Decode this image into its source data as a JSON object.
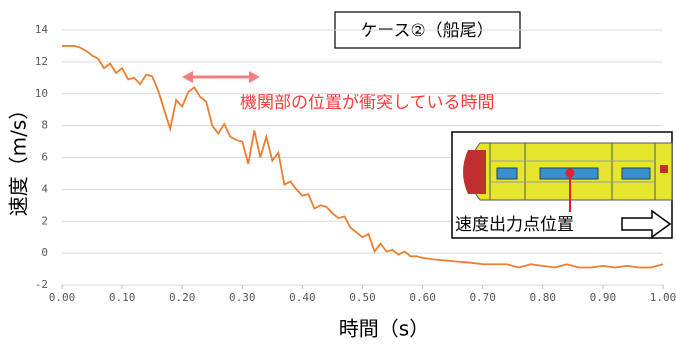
{
  "chart_data": {
    "type": "line",
    "case_label": "ケース②（船尾）",
    "annotation": "機関部の位置が衝突している時間",
    "inset_label": "速度出力点位置",
    "x_label": "時間（s）",
    "y_label": "速度（m/s）",
    "xlim": [
      0,
      1
    ],
    "ylim": [
      -2,
      14
    ],
    "xticks": [
      {
        "value": 0,
        "label": "0.00"
      },
      {
        "value": 0.1,
        "label": "0.10"
      },
      {
        "value": 0.2,
        "label": "0.20"
      },
      {
        "value": 0.3,
        "label": "0.30"
      },
      {
        "value": 0.4,
        "label": "0.40"
      },
      {
        "value": 0.5,
        "label": "0.50"
      },
      {
        "value": 0.6,
        "label": "0.60"
      },
      {
        "value": 0.7,
        "label": "0.70"
      },
      {
        "value": 0.8,
        "label": "0.80"
      },
      {
        "value": 0.9,
        "label": "0.90"
      },
      {
        "value": 1,
        "label": "1.00"
      }
    ],
    "yticks": [
      -2,
      0,
      2,
      4,
      6,
      8,
      10,
      12,
      14
    ],
    "grid": true,
    "color": "#ed7d31",
    "x": [
      0,
      0.01,
      0.02,
      0.03,
      0.04,
      0.05,
      0.06,
      0.07,
      0.08,
      0.09,
      0.1,
      0.11,
      0.12,
      0.13,
      0.14,
      0.15,
      0.16,
      0.17,
      0.18,
      0.19,
      0.2,
      0.21,
      0.22,
      0.23,
      0.24,
      0.25,
      0.26,
      0.27,
      0.28,
      0.29,
      0.3,
      0.31,
      0.32,
      0.33,
      0.34,
      0.35,
      0.36,
      0.37,
      0.38,
      0.39,
      0.4,
      0.41,
      0.42,
      0.43,
      0.44,
      0.45,
      0.46,
      0.47,
      0.48,
      0.49,
      0.5,
      0.51,
      0.52,
      0.53,
      0.54,
      0.55,
      0.56,
      0.57,
      0.58,
      0.59,
      0.6,
      0.62,
      0.65,
      0.68,
      0.7,
      0.72,
      0.74,
      0.76,
      0.78,
      0.8,
      0.82,
      0.84,
      0.86,
      0.88,
      0.9,
      0.92,
      0.94,
      0.96,
      0.98,
      1
    ],
    "values": [
      13,
      13,
      13,
      12.9,
      12.7,
      12.4,
      12.2,
      11.6,
      11.9,
      11.3,
      11.6,
      10.9,
      11,
      10.6,
      11.2,
      11.1,
      10.2,
      9,
      7.8,
      9.6,
      9.2,
      10.1,
      10.4,
      9.8,
      9.5,
      8,
      7.5,
      8.1,
      7.3,
      7.1,
      7,
      5.6,
      7.7,
      6,
      7.3,
      5.8,
      6.3,
      4.3,
      4.5,
      4,
      3.6,
      3.7,
      2.8,
      3,
      2.9,
      2.5,
      2.2,
      2.3,
      1.6,
      1.3,
      1,
      1.2,
      0.1,
      0.6,
      0.1,
      0.2,
      -0.1,
      0.1,
      -0.2,
      -0.2,
      -0.3,
      -0.4,
      -0.5,
      -0.6,
      -0.7,
      -0.7,
      -0.7,
      -0.9,
      -0.7,
      -0.8,
      -0.9,
      -0.7,
      -0.9,
      -0.9,
      -0.8,
      -0.9,
      -0.8,
      -0.9,
      -0.9,
      -0.7
    ]
  }
}
